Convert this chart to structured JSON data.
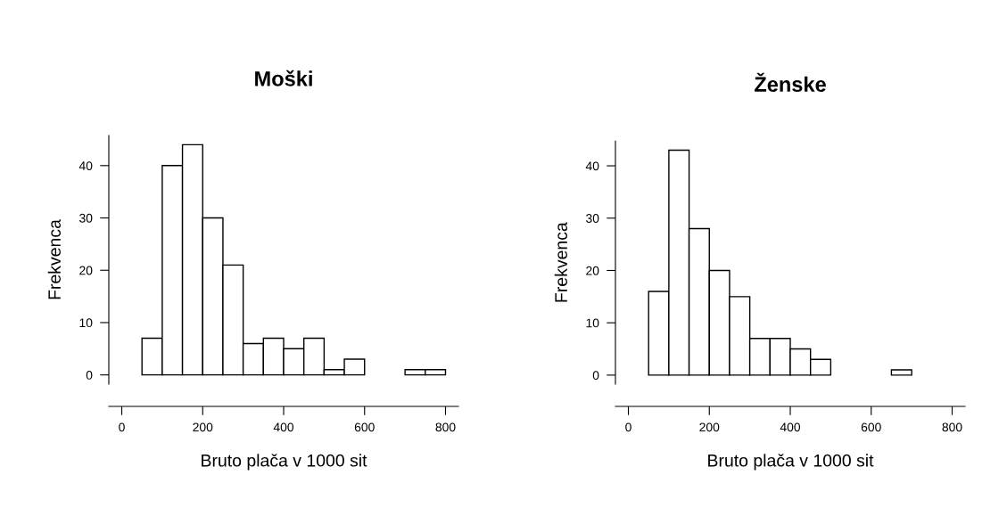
{
  "chart_data": [
    {
      "type": "histogram",
      "title": "Moški",
      "xlabel": "Bruto plača v 1000 sit",
      "ylabel": "Frekvenca",
      "bins": [
        0,
        50,
        100,
        150,
        200,
        250,
        300,
        350,
        400,
        450,
        500,
        550,
        600,
        650,
        700,
        750,
        800
      ],
      "values": [
        0,
        7,
        40,
        44,
        30,
        21,
        6,
        7,
        5,
        7,
        1,
        3,
        0,
        0,
        1,
        1
      ],
      "color": "#ffffff",
      "xlim": [
        -32,
        832
      ],
      "ylim": [
        -1.76,
        45.76
      ],
      "xticks": [
        0,
        200,
        400,
        600,
        800
      ],
      "yticks": [
        0,
        10,
        20,
        30,
        40
      ],
      "grid": false
    },
    {
      "type": "histogram",
      "title": "Ženske",
      "xlabel": "Bruto plača v 1000 sit",
      "ylabel": "Frekvenca",
      "bins": [
        0,
        50,
        100,
        150,
        200,
        250,
        300,
        350,
        400,
        450,
        500,
        550,
        600,
        650,
        700,
        750,
        800
      ],
      "values": [
        0,
        16,
        43,
        28,
        20,
        15,
        7,
        7,
        5,
        3,
        0,
        0,
        0,
        1,
        0,
        0
      ],
      "color": "#ffffff",
      "xlim": [
        -32,
        832
      ],
      "ylim": [
        -1.72,
        44.72
      ],
      "xticks": [
        0,
        200,
        400,
        600,
        800
      ],
      "yticks": [
        0,
        10,
        20,
        30,
        40
      ],
      "grid": false
    }
  ]
}
